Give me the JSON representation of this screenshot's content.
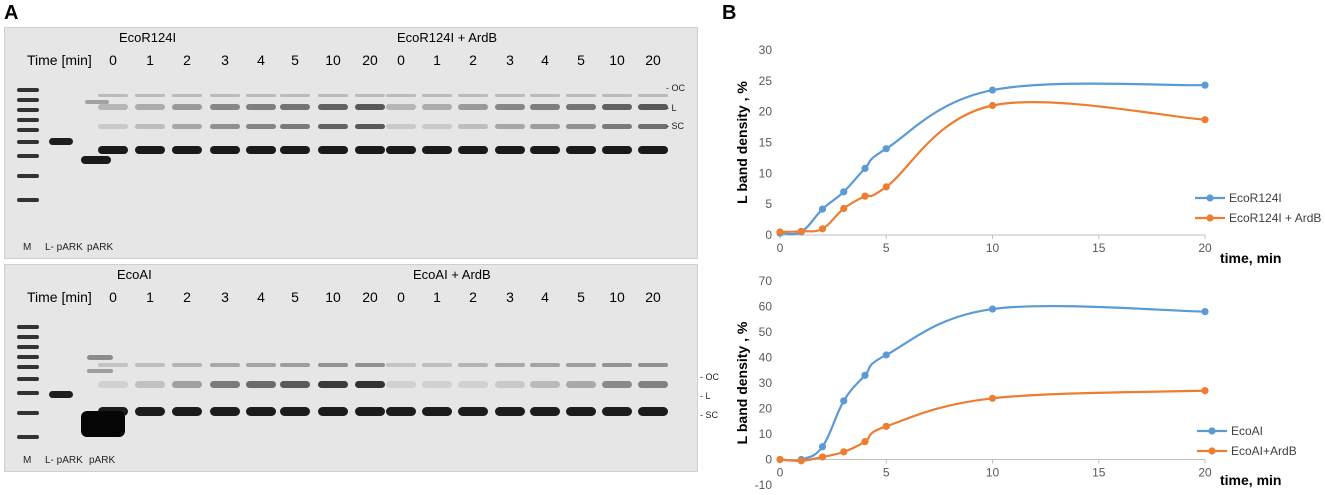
{
  "panel_a_letter": "A",
  "panel_b_letter": "B",
  "gel_top": {
    "enzyme_left": "EcoR124I",
    "enzyme_right": "EcoR124I + ArdB",
    "time_label": "Time [min]",
    "lanes_left": [
      "0",
      "1",
      "2",
      "3",
      "4",
      "5",
      "10",
      "20"
    ],
    "lanes_right": [
      "0",
      "1",
      "2",
      "3",
      "4",
      "5",
      "10",
      "20"
    ],
    "bottom_labels": [
      "M",
      "L- pARK",
      "pARK"
    ],
    "band_labels": [
      "- OC",
      "- L",
      "- SC"
    ]
  },
  "gel_bottom": {
    "enzyme_left": "EcoAI",
    "enzyme_right": "EcoAI + ArdB",
    "time_label": "Time [min]",
    "lanes_left": [
      "0",
      "1",
      "2",
      "3",
      "4",
      "5",
      "10",
      "20"
    ],
    "lanes_right": [
      "0",
      "1",
      "2",
      "3",
      "4",
      "5",
      "10",
      "20"
    ],
    "bottom_labels": [
      "M",
      "L- pARK",
      "pARK"
    ],
    "band_labels": [
      "- OC",
      "- L",
      "- SC"
    ]
  },
  "chart_data": [
    {
      "type": "line",
      "ylabel": "L band density , %",
      "xlabel": "time, min",
      "xlim": [
        0,
        20
      ],
      "ylim": [
        0,
        30
      ],
      "xticks": [
        0,
        5,
        10,
        15,
        20
      ],
      "yticks": [
        0,
        5,
        10,
        15,
        20,
        25,
        30
      ],
      "legend_position": "right",
      "series": [
        {
          "name": "EcoR124I",
          "color": "#5b9bd5",
          "x": [
            0,
            1,
            2,
            3,
            4,
            5,
            10,
            20
          ],
          "y": [
            0.3,
            0.5,
            4.2,
            7,
            10.8,
            14,
            23.5,
            24.3
          ]
        },
        {
          "name": "EcoR124I + ArdB",
          "color": "#ed7d31",
          "x": [
            0,
            1,
            2,
            3,
            4,
            5,
            10,
            20
          ],
          "y": [
            0.5,
            0.6,
            1,
            4.3,
            6.3,
            7.8,
            21,
            18.7
          ]
        }
      ]
    },
    {
      "type": "line",
      "ylabel": "L band density , %",
      "xlabel": "time, min",
      "xlim": [
        0,
        20
      ],
      "ylim": [
        -10,
        70
      ],
      "xticks": [
        0,
        5,
        10,
        15,
        20
      ],
      "yticks": [
        -10,
        0,
        10,
        20,
        30,
        40,
        50,
        60,
        70
      ],
      "legend_position": "bottom-right",
      "series": [
        {
          "name": "EcoAI",
          "color": "#5b9bd5",
          "x": [
            0,
            1,
            2,
            3,
            4,
            5,
            10,
            20
          ],
          "y": [
            0,
            0,
            5,
            23,
            33,
            41,
            59,
            58
          ]
        },
        {
          "name": "EcoAI+ArdB",
          "color": "#ed7d31",
          "x": [
            0,
            1,
            2,
            3,
            4,
            5,
            10,
            20
          ],
          "y": [
            0,
            -0.5,
            1,
            3,
            7,
            13,
            24,
            27
          ]
        }
      ]
    }
  ]
}
